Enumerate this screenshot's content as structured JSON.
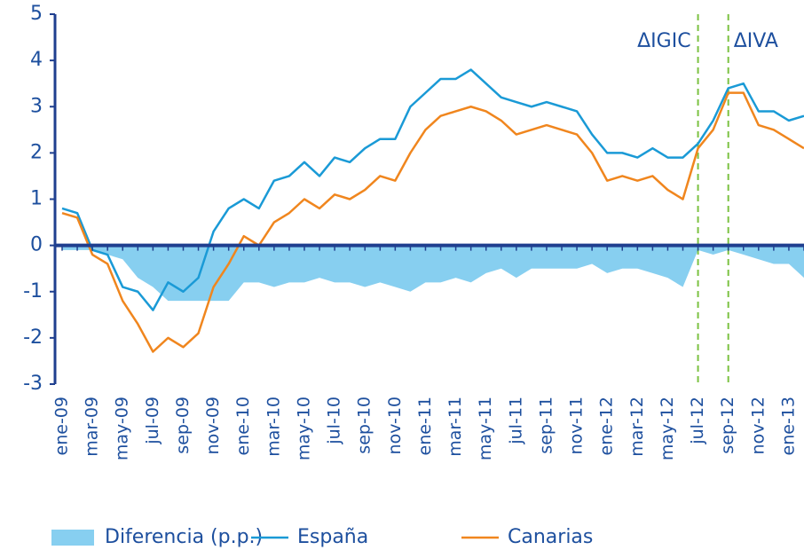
{
  "chart_data": {
    "type": "line",
    "categories": [
      "ene-09",
      null,
      "mar-09",
      null,
      "may-09",
      null,
      "jul-09",
      null,
      "sep-09",
      null,
      "nov-09",
      null,
      "ene-10",
      null,
      "mar-10",
      null,
      "may-10",
      null,
      "jul-10",
      null,
      "sep-10",
      null,
      "nov-10",
      null,
      "ene-11",
      null,
      "mar-11",
      null,
      "may-11",
      null,
      "jul-11",
      null,
      "sep-11",
      null,
      "nov-11",
      null,
      "ene-12",
      null,
      "mar-12",
      null,
      "may-12",
      null,
      "jul-12",
      null,
      "sep-12",
      null,
      "nov-12",
      null,
      "ene-13",
      null
    ],
    "series": [
      {
        "name": "Diferencia (p.p.)",
        "color": "#87cff0",
        "kind": "area",
        "values": [
          -0.1,
          -0.1,
          -0.1,
          -0.2,
          -0.3,
          -0.7,
          -0.9,
          -1.2,
          -1.2,
          -1.2,
          -1.2,
          -1.2,
          -0.8,
          -0.8,
          -0.9,
          -0.8,
          -0.8,
          -0.7,
          -0.8,
          -0.8,
          -0.9,
          -0.8,
          -0.9,
          -1.0,
          -0.8,
          -0.8,
          -0.7,
          -0.8,
          -0.6,
          -0.5,
          -0.7,
          -0.5,
          -0.5,
          -0.5,
          -0.5,
          -0.4,
          -0.6,
          -0.5,
          -0.5,
          -0.6,
          -0.7,
          -0.9,
          -0.1,
          -0.2,
          -0.1,
          -0.2,
          -0.3,
          -0.4,
          -0.4,
          -0.7
        ]
      },
      {
        "name": "España",
        "color": "#1a9ad6",
        "kind": "line",
        "values": [
          0.8,
          0.7,
          -0.1,
          -0.2,
          -0.9,
          -1.0,
          -1.4,
          -0.8,
          -1.0,
          -0.7,
          0.3,
          0.8,
          1.0,
          0.8,
          1.4,
          1.5,
          1.8,
          1.5,
          1.9,
          1.8,
          2.1,
          2.3,
          2.3,
          3.0,
          3.3,
          3.6,
          3.6,
          3.8,
          3.5,
          3.2,
          3.1,
          3.0,
          3.1,
          3.0,
          2.9,
          2.4,
          2.0,
          2.0,
          1.9,
          2.1,
          1.9,
          1.9,
          2.2,
          2.7,
          3.4,
          3.5,
          2.9,
          2.9,
          2.7,
          2.8
        ]
      },
      {
        "name": "Canarias",
        "color": "#f0861e",
        "kind": "line",
        "values": [
          0.7,
          0.6,
          -0.2,
          -0.4,
          -1.2,
          -1.7,
          -2.3,
          -2.0,
          -2.2,
          -1.9,
          -0.9,
          -0.4,
          0.2,
          0.0,
          0.5,
          0.7,
          1.0,
          0.8,
          1.1,
          1.0,
          1.2,
          1.5,
          1.4,
          2.0,
          2.5,
          2.8,
          2.9,
          3.0,
          2.9,
          2.7,
          2.4,
          2.5,
          2.6,
          2.5,
          2.4,
          2.0,
          1.4,
          1.5,
          1.4,
          1.5,
          1.2,
          1.0,
          2.1,
          2.5,
          3.3,
          3.3,
          2.6,
          2.5,
          2.3,
          2.1
        ]
      }
    ],
    "ylim": [
      -3,
      5
    ],
    "yticks": [
      -3,
      -2,
      -1,
      0,
      1,
      2,
      3,
      4,
      5
    ],
    "vlines": [
      {
        "category": "jul-12",
        "label": "ΔIGIC",
        "color": "#7cc242"
      },
      {
        "category": "sep-12",
        "label": "ΔIVA",
        "color": "#7cc242"
      }
    ],
    "legend": "bottom"
  }
}
